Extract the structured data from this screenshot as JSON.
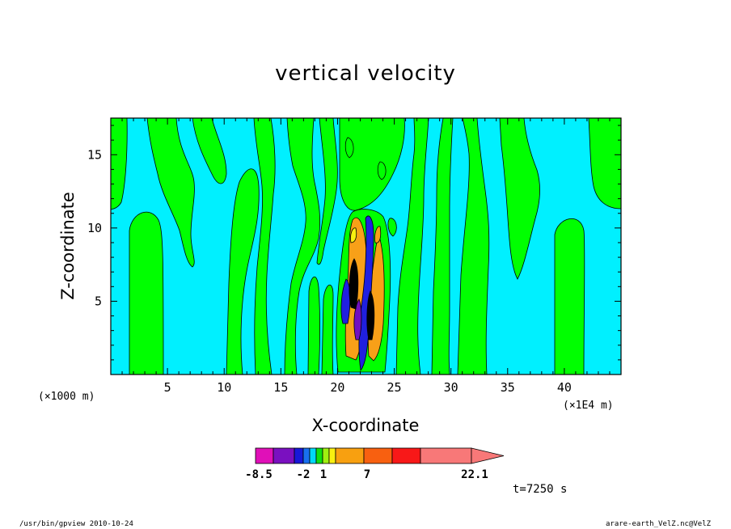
{
  "chart_data": {
    "type": "heatmap",
    "title": "vertical velocity",
    "xlabel": "X-coordinate",
    "ylabel": "Z-coordinate",
    "x_tick_labels": [
      "5",
      "10",
      "15",
      "20",
      "25",
      "30",
      "35",
      "40"
    ],
    "x_ticks": [
      5,
      10,
      15,
      20,
      25,
      30,
      35,
      40
    ],
    "y_tick_labels": [
      "5",
      "10",
      "15"
    ],
    "y_ticks": [
      5,
      10,
      15
    ],
    "xlim": [
      0,
      45
    ],
    "ylim": [
      0,
      17.5
    ],
    "x_unit_left": "(×1000 m)",
    "x_unit_right": "(×1E4 m)",
    "colorbar": {
      "tick_labels": [
        "-8.5",
        "-2",
        "1",
        "7",
        "22.1"
      ],
      "tick_values": [
        -8.5,
        -2,
        1,
        7,
        22.1
      ],
      "colors": [
        "#e010b8",
        "#7a10c0",
        "#1818d8",
        "#1870f0",
        "#00d8f8",
        "#10e010",
        "#a0f010",
        "#f8f010",
        "#f8a010",
        "#f86010",
        "#f81818",
        "#f87878"
      ]
    },
    "time_label": "t=7250 s"
  },
  "footer": {
    "left": "/usr/bin/gpview   2010-10-24",
    "right": "arare-earth_VelZ.nc@VelZ"
  },
  "colors": {
    "positive_weak": "#00ff00",
    "background_field": "#00f0ff",
    "updraft": "#f8a018",
    "downdraft": "#2020e0"
  }
}
